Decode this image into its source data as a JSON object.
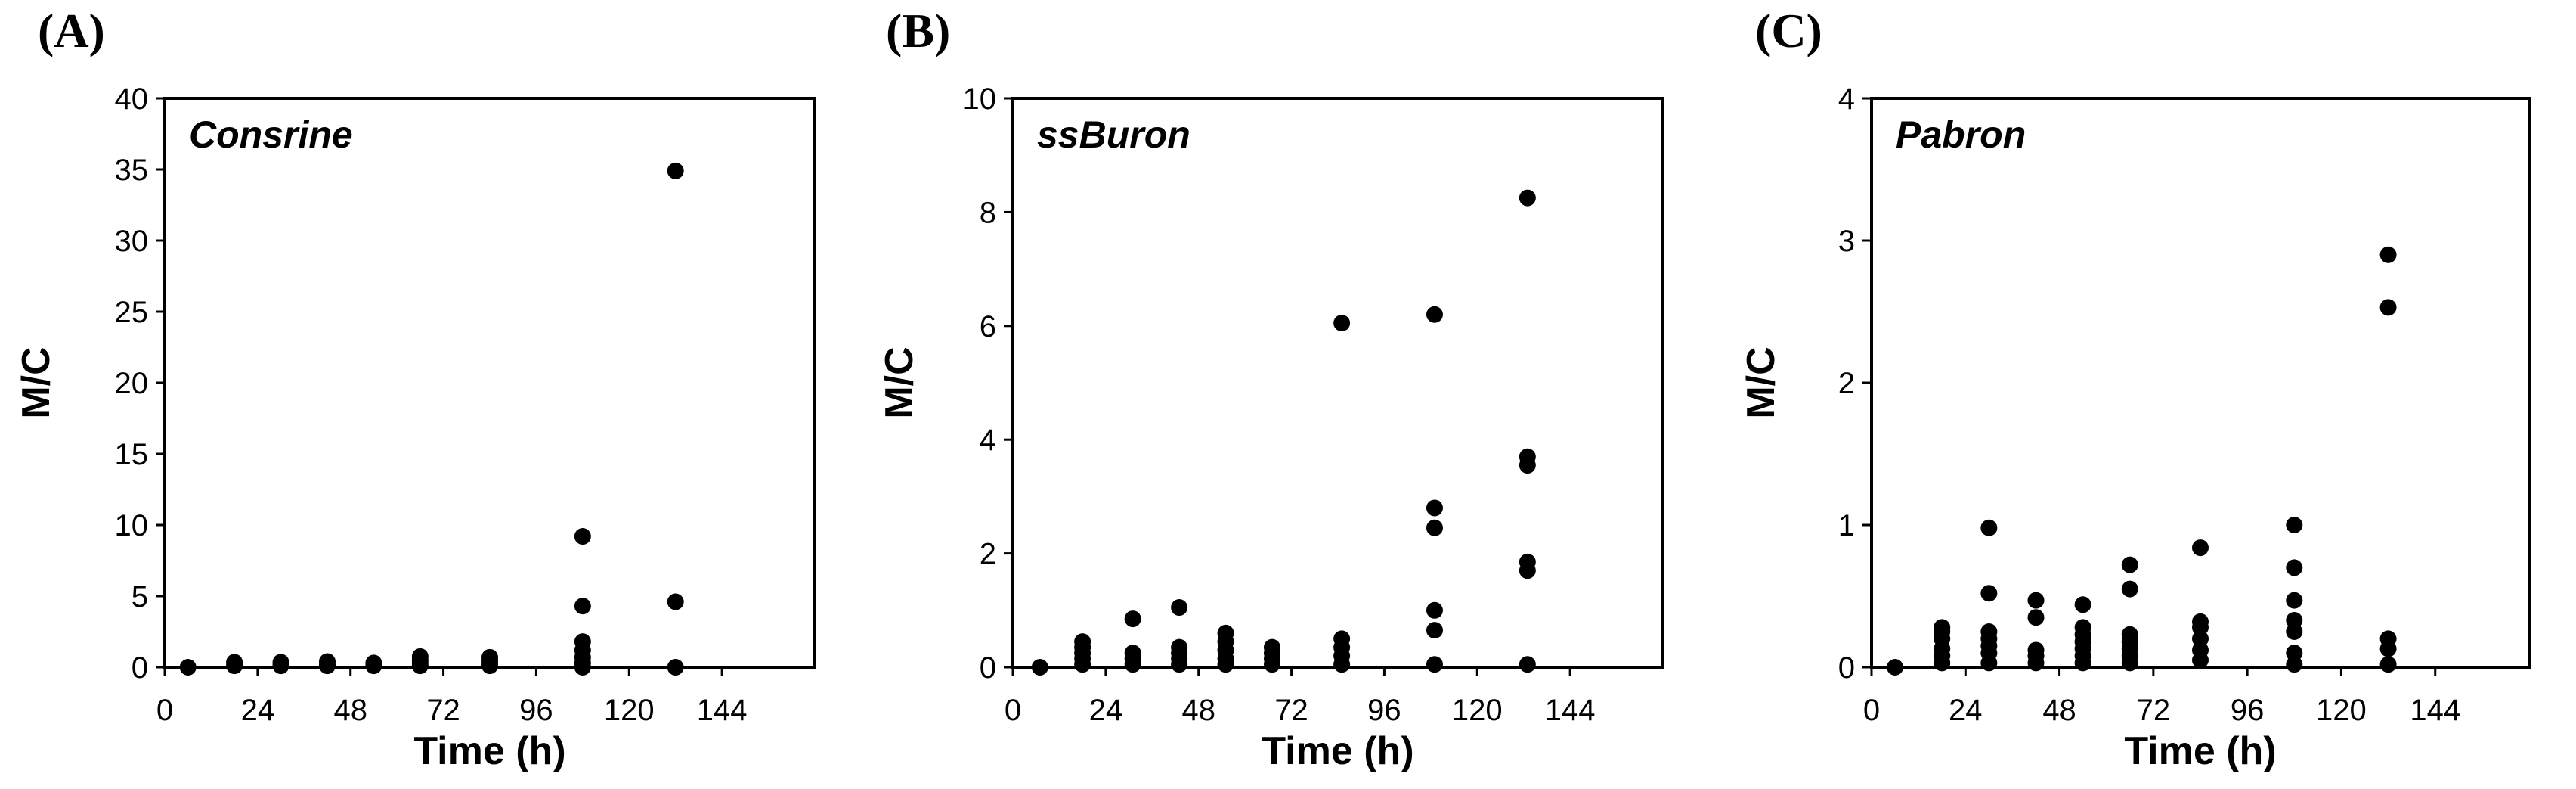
{
  "chart_data": [
    {
      "type": "scatter",
      "panel_label": "(A)",
      "title": "Consrine",
      "xlabel": "Time (h)",
      "ylabel": "M/C",
      "xlim": [
        0,
        168
      ],
      "ylim": [
        0,
        40
      ],
      "xticks": [
        0,
        24,
        48,
        72,
        96,
        120,
        144
      ],
      "yticks": [
        0,
        5,
        10,
        15,
        20,
        25,
        30,
        35,
        40
      ],
      "grid": false,
      "marker_color": "#000000",
      "points": [
        [
          6,
          0
        ],
        [
          18,
          0.1
        ],
        [
          18,
          0.2
        ],
        [
          18,
          0.35
        ],
        [
          30,
          0.1
        ],
        [
          30,
          0.2
        ],
        [
          30,
          0.35
        ],
        [
          42,
          0.1
        ],
        [
          42,
          0.2
        ],
        [
          42,
          0.4
        ],
        [
          54,
          0.1
        ],
        [
          54,
          0.2
        ],
        [
          54,
          0.3
        ],
        [
          66,
          0.1
        ],
        [
          66,
          0.3
        ],
        [
          66,
          0.5
        ],
        [
          66,
          0.75
        ],
        [
          84,
          0.1
        ],
        [
          84,
          0.3
        ],
        [
          84,
          0.5
        ],
        [
          84,
          0.7
        ],
        [
          108,
          0
        ],
        [
          108,
          0.3
        ],
        [
          108,
          0.7
        ],
        [
          108,
          1.2
        ],
        [
          108,
          1.8
        ],
        [
          108,
          4.3
        ],
        [
          108,
          9.2
        ],
        [
          132,
          0
        ],
        [
          132,
          4.6
        ],
        [
          132,
          34.9
        ]
      ]
    },
    {
      "type": "scatter",
      "panel_label": "(B)",
      "title": "ssBuron",
      "xlabel": "Time (h)",
      "ylabel": "M/C",
      "xlim": [
        0,
        168
      ],
      "ylim": [
        0,
        10
      ],
      "xticks": [
        0,
        24,
        48,
        72,
        96,
        120,
        144
      ],
      "yticks": [
        0,
        2,
        4,
        6,
        8,
        10
      ],
      "grid": false,
      "marker_color": "#000000",
      "points": [
        [
          7,
          0
        ],
        [
          18,
          0.05
        ],
        [
          18,
          0.15
        ],
        [
          18,
          0.25
        ],
        [
          18,
          0.35
        ],
        [
          18,
          0.45
        ],
        [
          31,
          0.05
        ],
        [
          31,
          0.15
        ],
        [
          31,
          0.25
        ],
        [
          31,
          0.85
        ],
        [
          43,
          0.05
        ],
        [
          43,
          0.15
        ],
        [
          43,
          0.25
        ],
        [
          43,
          0.35
        ],
        [
          43,
          1.05
        ],
        [
          55,
          0.05
        ],
        [
          55,
          0.15
        ],
        [
          55,
          0.3
        ],
        [
          55,
          0.45
        ],
        [
          55,
          0.6
        ],
        [
          67,
          0.05
        ],
        [
          67,
          0.15
        ],
        [
          67,
          0.25
        ],
        [
          67,
          0.35
        ],
        [
          85,
          0.05
        ],
        [
          85,
          0.2
        ],
        [
          85,
          0.35
        ],
        [
          85,
          0.5
        ],
        [
          85,
          6.05
        ],
        [
          109,
          0.05
        ],
        [
          109,
          0.65
        ],
        [
          109,
          1.0
        ],
        [
          109,
          2.45
        ],
        [
          109,
          2.8
        ],
        [
          109,
          6.2
        ],
        [
          133,
          0.05
        ],
        [
          133,
          1.7
        ],
        [
          133,
          1.85
        ],
        [
          133,
          3.55
        ],
        [
          133,
          3.7
        ],
        [
          133,
          8.25
        ]
      ]
    },
    {
      "type": "scatter",
      "panel_label": "(C)",
      "title": "Pabron",
      "xlabel": "Time (h)",
      "ylabel": "M/C",
      "xlim": [
        0,
        168
      ],
      "ylim": [
        0,
        4
      ],
      "xticks": [
        0,
        24,
        48,
        72,
        96,
        120,
        144
      ],
      "yticks": [
        0,
        1,
        2,
        3,
        4
      ],
      "grid": false,
      "marker_color": "#000000",
      "points": [
        [
          6,
          0
        ],
        [
          18,
          0.03
        ],
        [
          18,
          0.08
        ],
        [
          18,
          0.13
        ],
        [
          18,
          0.2
        ],
        [
          18,
          0.25
        ],
        [
          18,
          0.28
        ],
        [
          30,
          0.03
        ],
        [
          30,
          0.1
        ],
        [
          30,
          0.15
        ],
        [
          30,
          0.2
        ],
        [
          30,
          0.25
        ],
        [
          30,
          0.52
        ],
        [
          30,
          0.98
        ],
        [
          42,
          0.03
        ],
        [
          42,
          0.08
        ],
        [
          42,
          0.12
        ],
        [
          42,
          0.35
        ],
        [
          42,
          0.47
        ],
        [
          54,
          0.03
        ],
        [
          54,
          0.08
        ],
        [
          54,
          0.13
        ],
        [
          54,
          0.18
        ],
        [
          54,
          0.23
        ],
        [
          54,
          0.28
        ],
        [
          54,
          0.44
        ],
        [
          66,
          0.03
        ],
        [
          66,
          0.08
        ],
        [
          66,
          0.13
        ],
        [
          66,
          0.18
        ],
        [
          66,
          0.23
        ],
        [
          66,
          0.55
        ],
        [
          66,
          0.72
        ],
        [
          84,
          0.05
        ],
        [
          84,
          0.12
        ],
        [
          84,
          0.2
        ],
        [
          84,
          0.28
        ],
        [
          84,
          0.32
        ],
        [
          84,
          0.84
        ],
        [
          108,
          0.02
        ],
        [
          108,
          0.1
        ],
        [
          108,
          0.25
        ],
        [
          108,
          0.33
        ],
        [
          108,
          0.47
        ],
        [
          108,
          0.7
        ],
        [
          108,
          1.0
        ],
        [
          132,
          0.02
        ],
        [
          132,
          0.13
        ],
        [
          132,
          0.2
        ],
        [
          132,
          2.53
        ],
        [
          132,
          2.9
        ]
      ]
    }
  ]
}
